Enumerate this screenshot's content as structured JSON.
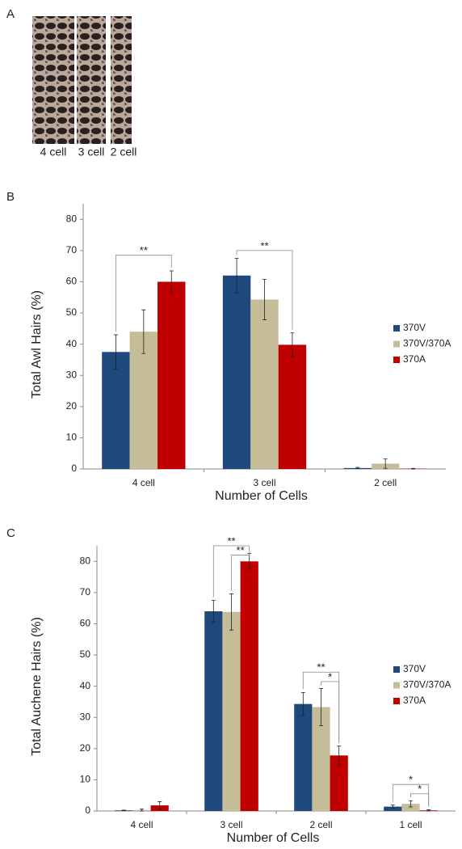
{
  "panel_a": {
    "label": "A",
    "captions": [
      "4 cell",
      "3 cell",
      "2 cell"
    ]
  },
  "chart_data": [
    {
      "type": "bar",
      "panel_label": "B",
      "y_label": "Total Awl Hairs (%)",
      "x_label": "Number of Cells",
      "categories": [
        "4 cell",
        "3 cell",
        "2 cell"
      ],
      "series": [
        {
          "name": "370V",
          "color": "#1f497d",
          "values": [
            37.5,
            62,
            0.3
          ],
          "errors": [
            5.5,
            5.5,
            0.2
          ]
        },
        {
          "name": "370V/370A",
          "color": "#c4bd97",
          "values": [
            44,
            54.3,
            1.7
          ],
          "errors": [
            7,
            6.5,
            1.5
          ]
        },
        {
          "name": "370A",
          "color": "#c00000",
          "values": [
            60,
            39.8,
            0.1
          ],
          "errors": [
            3.5,
            3.8,
            0.1
          ]
        }
      ],
      "ylim": [
        0,
        85
      ],
      "yticks": [
        0,
        10,
        20,
        30,
        40,
        50,
        60,
        70,
        80
      ],
      "legend": "right",
      "significance": [
        {
          "category": 0,
          "from": 0,
          "to": 2,
          "y": 68.5,
          "label": "**"
        },
        {
          "category": 1,
          "from": 0,
          "to": 2,
          "y": 70,
          "label": "**"
        }
      ]
    },
    {
      "type": "bar",
      "panel_label": "C",
      "y_label": "Total Auchene Hairs (%)",
      "x_label": "Number of Cells",
      "categories": [
        "4 cell",
        "3 cell",
        "2 cell",
        "1 cell"
      ],
      "series": [
        {
          "name": "370V",
          "color": "#1f497d",
          "values": [
            0.2,
            64,
            34.3,
            1.4
          ],
          "errors": [
            0.1,
            3.5,
            3.7,
            0.5
          ]
        },
        {
          "name": "370V/370A",
          "color": "#c4bd97",
          "values": [
            0.3,
            63.8,
            33.3,
            2.3
          ],
          "errors": [
            0.3,
            5.8,
            6,
            1
          ]
        },
        {
          "name": "370A",
          "color": "#c00000",
          "values": [
            1.8,
            80,
            17.8,
            0.2
          ],
          "errors": [
            1.2,
            2.5,
            3,
            0.2
          ]
        }
      ],
      "ylim": [
        0,
        85
      ],
      "yticks": [
        0,
        10,
        20,
        30,
        40,
        50,
        60,
        70,
        80
      ],
      "legend": "right",
      "significance": [
        {
          "category": 1,
          "from": 0,
          "to": 2,
          "y": 85,
          "label": "**"
        },
        {
          "category": 1,
          "from": 1,
          "to": 2,
          "y": 82,
          "label": "**"
        },
        {
          "category": 2,
          "from": 0,
          "to": 2,
          "y": 44.5,
          "label": "**"
        },
        {
          "category": 2,
          "from": 1,
          "to": 2,
          "y": 41.5,
          "label": "*"
        },
        {
          "category": 3,
          "from": 0,
          "to": 2,
          "y": 8.5,
          "label": "*"
        },
        {
          "category": 3,
          "from": 1,
          "to": 2,
          "y": 5.5,
          "label": "*"
        }
      ]
    }
  ]
}
